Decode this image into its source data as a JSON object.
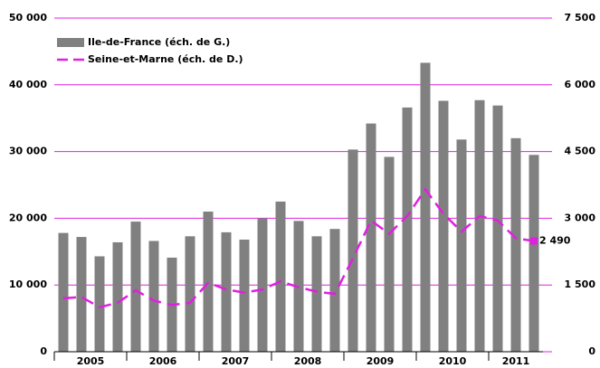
{
  "chart_data": {
    "type": "bar_line",
    "categories": [
      null,
      null,
      null,
      null,
      null,
      null,
      null,
      null,
      null,
      null,
      null,
      null,
      null,
      null,
      null,
      null,
      null,
      null,
      null,
      null,
      null,
      null,
      null,
      null,
      null,
      null,
      null
    ],
    "x_groups": [
      "2005",
      "2006",
      "2007",
      "2008",
      "2009",
      "2010",
      "2011"
    ],
    "series": [
      {
        "name": "Ile-de-France (éch. de G.)",
        "color": "#808080",
        "type": "bar",
        "values": [
          17800,
          17200,
          14300,
          16400,
          19500,
          16600,
          14100,
          17300,
          21000,
          17900,
          16800,
          20000,
          22500,
          19600,
          17300,
          18400,
          30300,
          34200,
          29200,
          36600,
          43300,
          37600,
          31800,
          37700,
          36900,
          32000,
          29500
        ]
      },
      {
        "name": "Seine-et-Marne (éch. de D.)",
        "color": "#e020e0",
        "type": "line",
        "axis": "y2",
        "values": [
          1200,
          1230,
          1000,
          1100,
          1380,
          1150,
          1050,
          1100,
          1550,
          1400,
          1330,
          1400,
          1580,
          1450,
          1350,
          1300,
          2100,
          2950,
          2650,
          3050,
          3650,
          3100,
          2700,
          3050,
          2950,
          2550,
          2490
        ],
        "value_labels": [
          null,
          null,
          null,
          null,
          null,
          null,
          null,
          null,
          null,
          null,
          null,
          null,
          null,
          null,
          null,
          null,
          null,
          null,
          null,
          null,
          null,
          null,
          null,
          null,
          null,
          null,
          "2 490"
        ]
      }
    ],
    "ylim": [
      0,
      50000
    ],
    "yticks": [
      0,
      {
        "value": 10000,
        "label": "10 000"
      },
      {
        "value": 20000,
        "label": "20 000"
      },
      {
        "value": 30000,
        "label": "30 000"
      },
      {
        "value": 40000,
        "label": "40 000"
      },
      {
        "value": 50000,
        "label": "50 000"
      }
    ],
    "y2lim": [
      0,
      7500
    ],
    "y2ticks": [
      0,
      {
        "value": 1500,
        "label": "1 500"
      },
      {
        "value": 3000,
        "label": "3 000"
      },
      {
        "value": 4500,
        "label": "4 500"
      },
      {
        "value": 6000,
        "label": "6 000"
      },
      {
        "value": 7500,
        "label": "7 500"
      }
    ],
    "grid": true,
    "legend": "top-left"
  }
}
